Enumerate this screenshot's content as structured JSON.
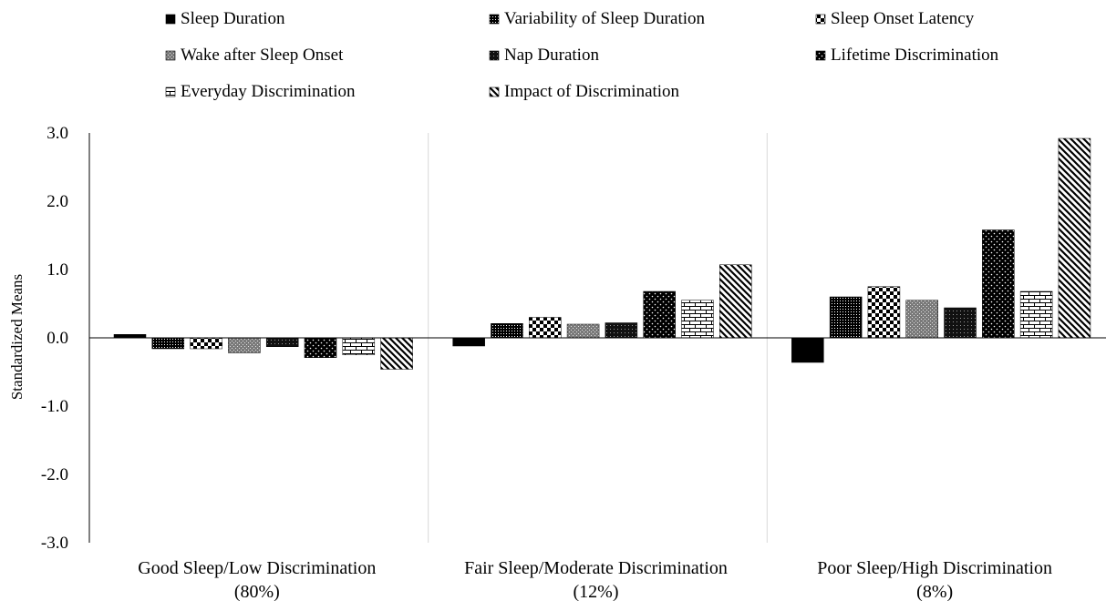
{
  "chart_data": {
    "type": "bar",
    "title": "",
    "xlabel": "",
    "ylabel": "Standardized Means",
    "ylim": [
      -3.0,
      3.0
    ],
    "yticks": [
      "3.0",
      "2.0",
      "1.0",
      "0.0",
      "-1.0",
      "-2.0",
      "-3.0"
    ],
    "yticks_values": [
      3,
      2,
      1,
      0,
      -1,
      -2,
      -3
    ],
    "grid": false,
    "group_separators": true,
    "legend_position": "top",
    "categories": [
      {
        "line1": "Good Sleep/Low Discrimination",
        "line2": "(80%)"
      },
      {
        "line1": "Fair Sleep/Moderate Discrimination",
        "line2": "(12%)"
      },
      {
        "line1": "Poor Sleep/High Discrimination",
        "line2": "(8%)"
      }
    ],
    "series": [
      {
        "name": "Sleep Duration",
        "pattern": "solid",
        "values": [
          0.05,
          -0.12,
          -0.36
        ]
      },
      {
        "name": "Variability of Sleep Duration",
        "pattern": "fine-grid",
        "values": [
          -0.16,
          0.21,
          0.6
        ]
      },
      {
        "name": "Sleep Onset Latency",
        "pattern": "checker",
        "values": [
          -0.16,
          0.3,
          0.75
        ]
      },
      {
        "name": "Wake after Sleep Onset",
        "pattern": "gray-dots",
        "values": [
          -0.22,
          0.2,
          0.55
        ]
      },
      {
        "name": "Nap Duration",
        "pattern": "dense-grid",
        "values": [
          -0.13,
          0.22,
          0.44
        ]
      },
      {
        "name": "Lifetime Discrimination",
        "pattern": "dots-dark",
        "values": [
          -0.29,
          0.68,
          1.58
        ]
      },
      {
        "name": "Everyday Discrimination",
        "pattern": "brick",
        "values": [
          -0.25,
          0.55,
          0.68
        ]
      },
      {
        "name": "Impact of Discrimination",
        "pattern": "diagonal",
        "values": [
          -0.46,
          1.07,
          2.92
        ]
      }
    ]
  }
}
